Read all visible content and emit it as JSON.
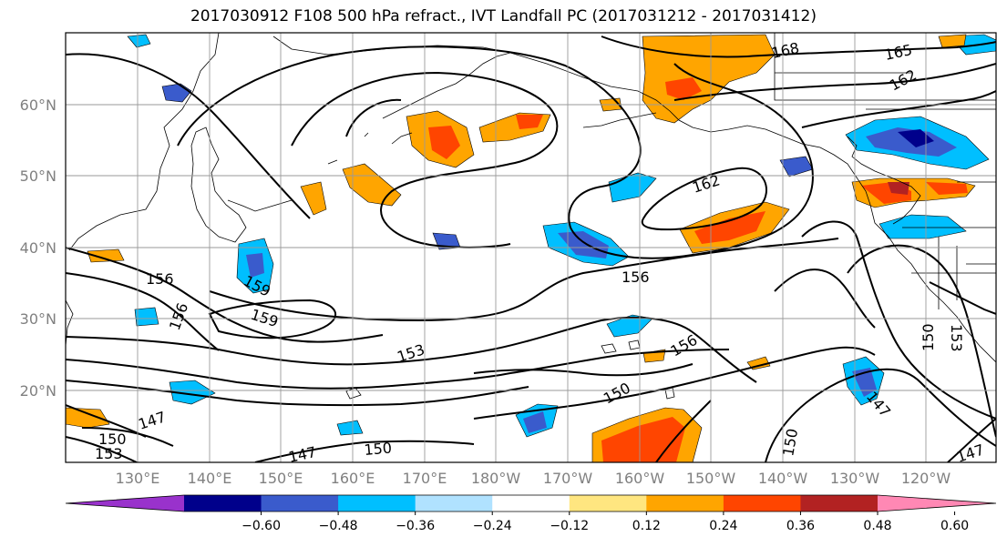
{
  "title": "2017030912 F108 500 hPa refract., IVT Landfall PC (2017031212 - 2017031412)",
  "map": {
    "lat_labels": [
      "60°N",
      "50°N",
      "40°N",
      "30°N",
      "20°N"
    ],
    "lon_labels": [
      "130°E",
      "140°E",
      "150°E",
      "160°E",
      "170°E",
      "180°W",
      "170°W",
      "160°W",
      "150°W",
      "140°W",
      "130°W",
      "120°W"
    ],
    "contour_labels": [
      "168",
      "165",
      "162",
      "162",
      "156",
      "156",
      "159",
      "159",
      "156",
      "153",
      "156",
      "150",
      "150",
      "153",
      "147",
      "150",
      "153",
      "147",
      "150",
      "147",
      "150",
      "147"
    ]
  },
  "colorbar": {
    "colors": [
      "#9932cc",
      "#00008b",
      "#3a5bcc",
      "#00bfff",
      "#b0e2ff",
      "#ffffff",
      "#ffe680",
      "#ffa500",
      "#ff4500",
      "#b22222",
      "#ff88b4"
    ],
    "tick_labels": [
      "−0.60",
      "−0.48",
      "−0.36",
      "−0.24",
      "−0.12",
      "0.12",
      "0.24",
      "0.36",
      "0.48",
      "0.60"
    ]
  }
}
